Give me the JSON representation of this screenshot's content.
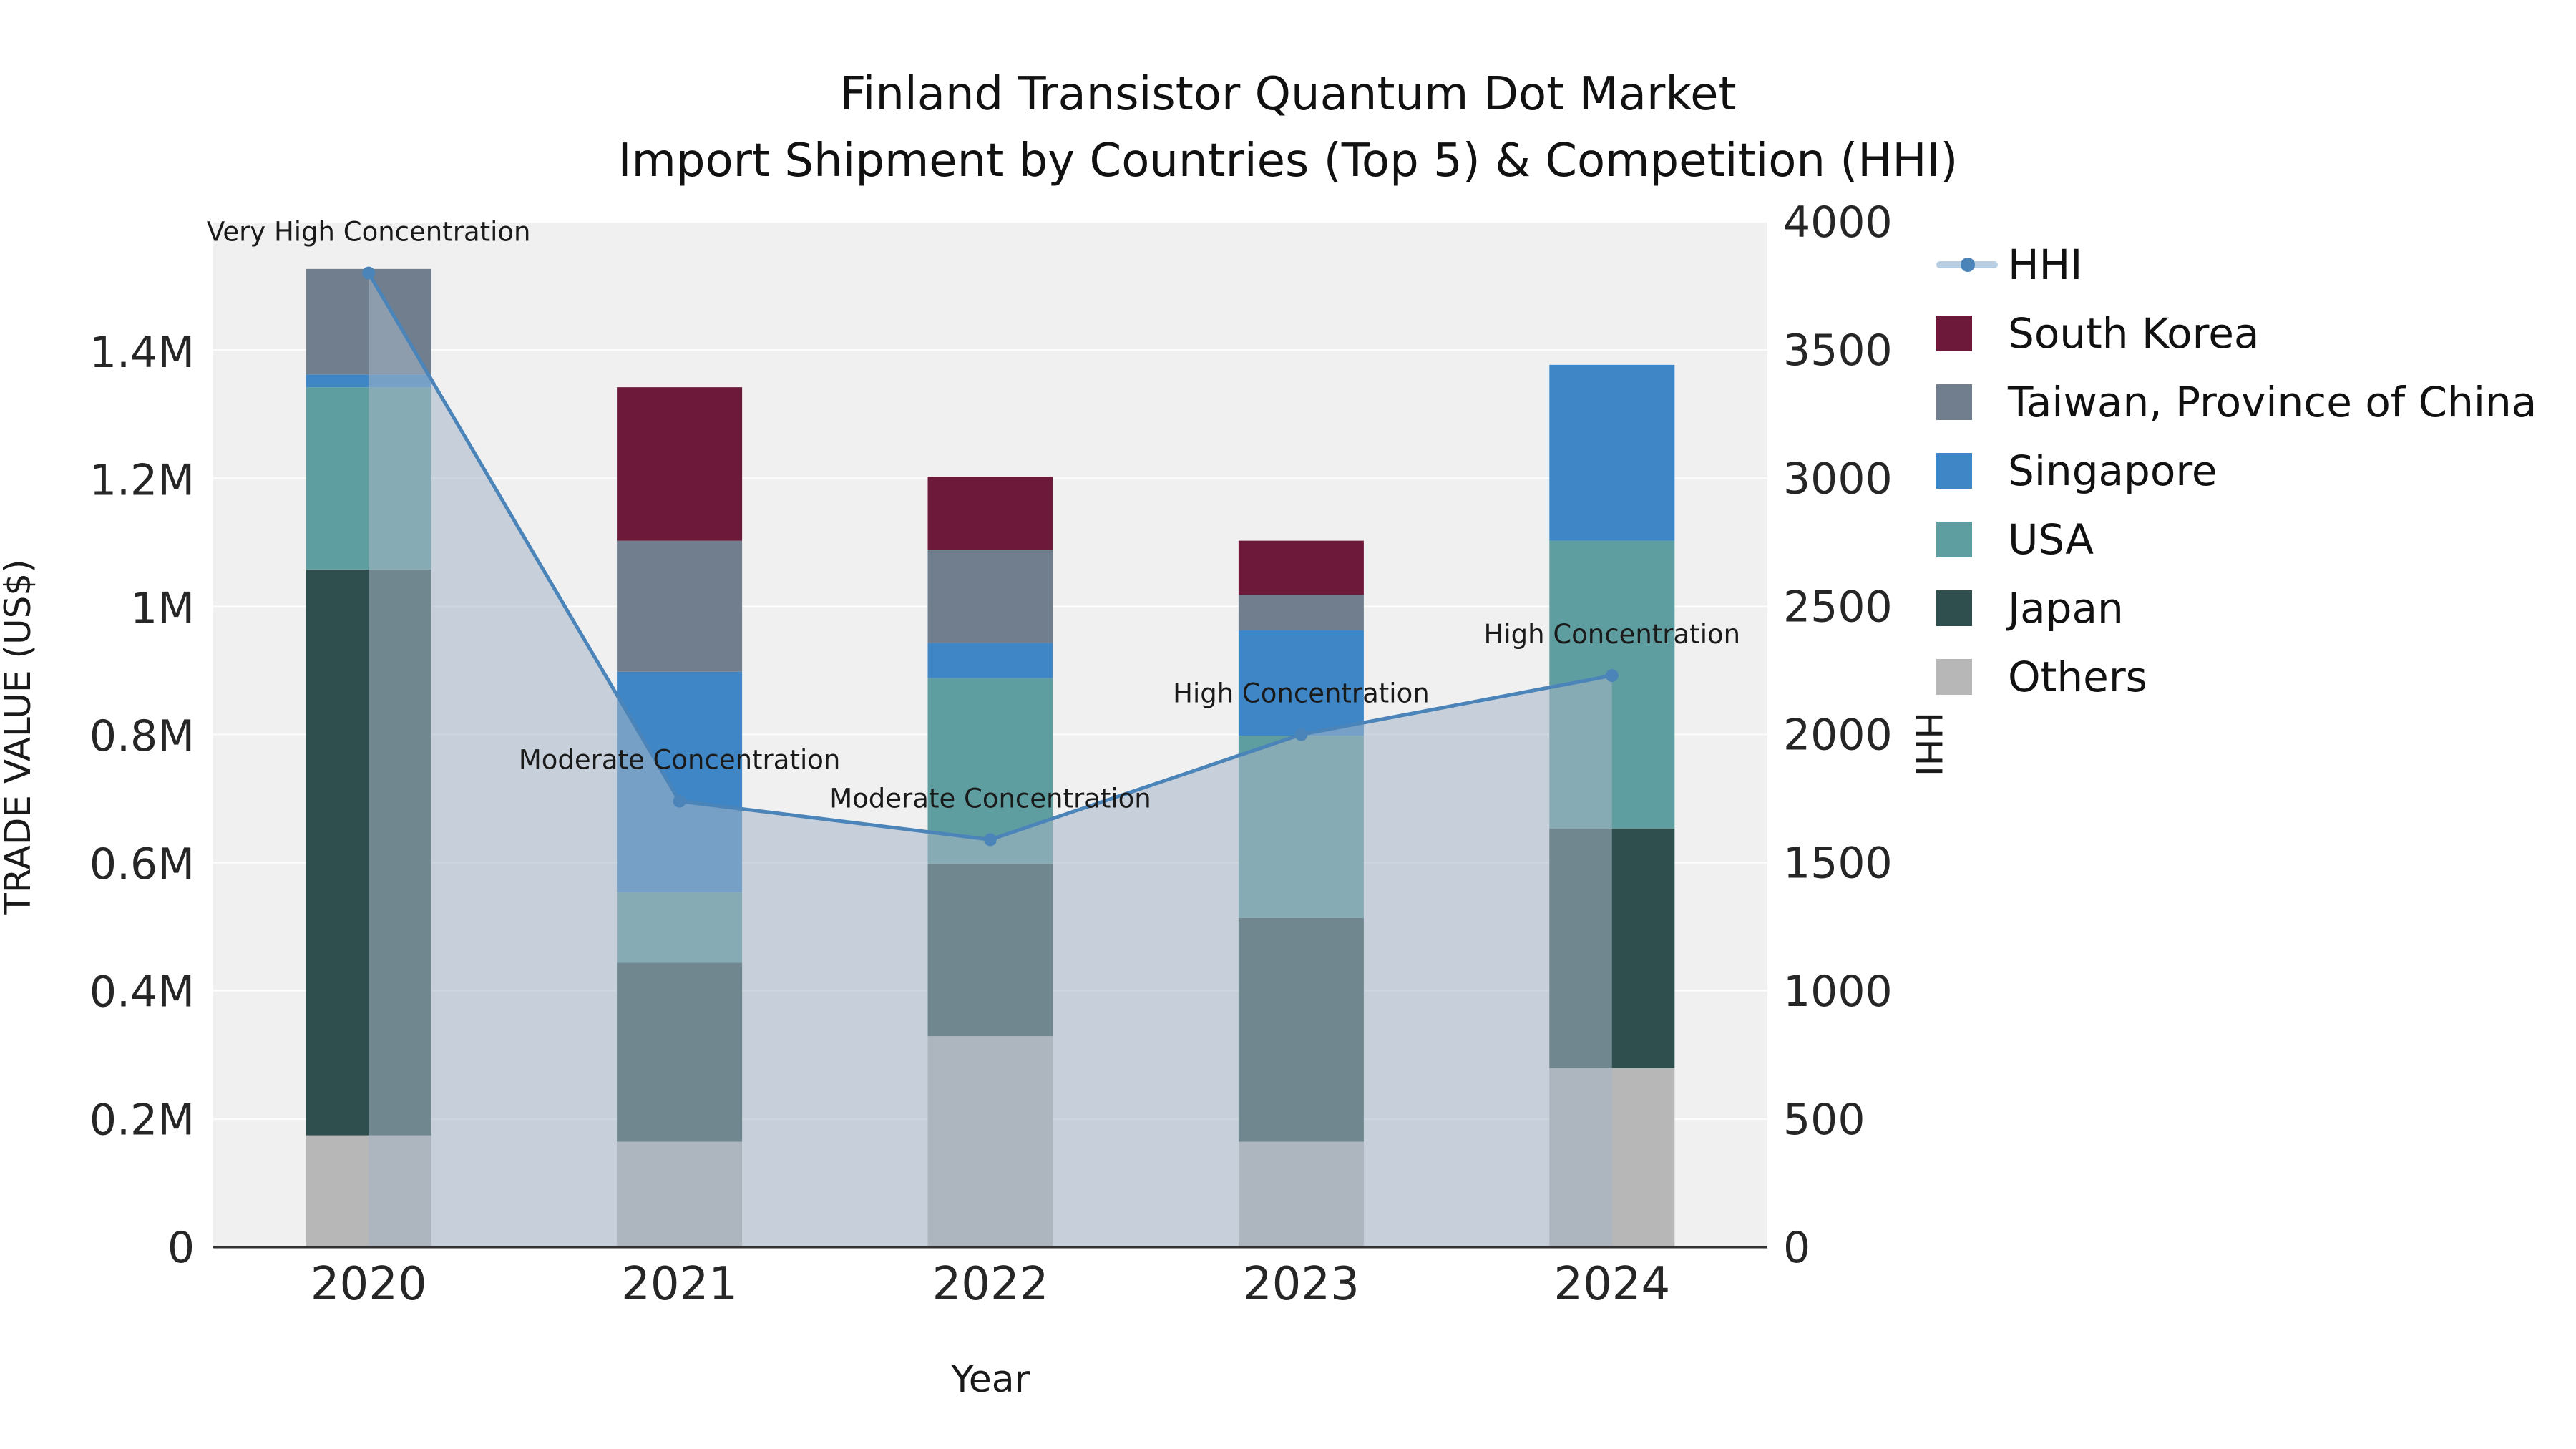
{
  "chart_data": {
    "type": "bar",
    "subtype": "stacked-bars-with-line-overlay",
    "title_lines": [
      "Finland Transistor Quantum Dot Market",
      "Import Shipment by Countries (Top 5) & Competition (HHI)"
    ],
    "categories": [
      "2020",
      "2021",
      "2022",
      "2023",
      "2024"
    ],
    "series": [
      {
        "name": "Others",
        "color": "#b7b7b7",
        "values": [
          175000,
          165000,
          330000,
          165000,
          280000
        ]
      },
      {
        "name": "Japan",
        "color": "#2f4f4f",
        "values": [
          885000,
          280000,
          270000,
          350000,
          375000
        ]
      },
      {
        "name": "USA",
        "color": "#5f9ea0",
        "values": [
          285000,
          110000,
          290000,
          285000,
          450000
        ]
      },
      {
        "name": "Singapore",
        "color": "#3f86c6",
        "values": [
          20000,
          345000,
          55000,
          165000,
          275000
        ]
      },
      {
        "name": "Taiwan, Province of China",
        "color": "#707e8e",
        "values": [
          165000,
          205000,
          145000,
          55000,
          0
        ]
      },
      {
        "name": "South Korea",
        "color": "#6d1a3a",
        "values": [
          0,
          240000,
          115000,
          85000,
          0
        ]
      }
    ],
    "line_series": {
      "name": "HHI",
      "color": "#4b84b8",
      "values": [
        3800,
        1740,
        1590,
        2000,
        2230
      ]
    },
    "annotations": [
      {
        "x": "2020",
        "text": "Very High Concentration"
      },
      {
        "x": "2021",
        "text": "Moderate Concentration"
      },
      {
        "x": "2022",
        "text": "Moderate Concentration"
      },
      {
        "x": "2023",
        "text": "High Concentration"
      },
      {
        "x": "2024",
        "text": "High Concentration"
      }
    ],
    "left_axis": {
      "label": "TRADE VALUE (US$)",
      "ticks": [
        {
          "value": 0,
          "label": "0"
        },
        {
          "value": 200000,
          "label": "0.2M"
        },
        {
          "value": 400000,
          "label": "0.4M"
        },
        {
          "value": 600000,
          "label": "0.6M"
        },
        {
          "value": 800000,
          "label": "0.8M"
        },
        {
          "value": 1000000,
          "label": "1M"
        },
        {
          "value": 1200000,
          "label": "1.2M"
        },
        {
          "value": 1400000,
          "label": "1.4M"
        }
      ]
    },
    "right_axis": {
      "label": "HHI",
      "ticks": [
        0,
        500,
        1000,
        1500,
        2000,
        2500,
        3000,
        3500,
        4000
      ]
    },
    "x_axis": {
      "label": "Year"
    },
    "legend": [
      {
        "label": "HHI",
        "swatch": "line",
        "color": "#4b84b8"
      },
      {
        "label": "South Korea",
        "swatch": "square",
        "color": "#6d1a3a"
      },
      {
        "label": "Taiwan, Province of China",
        "swatch": "square",
        "color": "#707e8e"
      },
      {
        "label": "Singapore",
        "swatch": "square",
        "color": "#3f86c6"
      },
      {
        "label": "USA",
        "swatch": "square",
        "color": "#5f9ea0"
      },
      {
        "label": "Japan",
        "swatch": "square",
        "color": "#2f4f4f"
      },
      {
        "label": "Others",
        "swatch": "square",
        "color": "#b7b7b7"
      }
    ],
    "style": {
      "plot_bg": "#f0f0f1",
      "grid": "#ffffff",
      "area_fill": "#a5b6c7",
      "area_opacity": 0.55,
      "axis_line": "#333333",
      "text_color": "#1a1a1a"
    }
  }
}
